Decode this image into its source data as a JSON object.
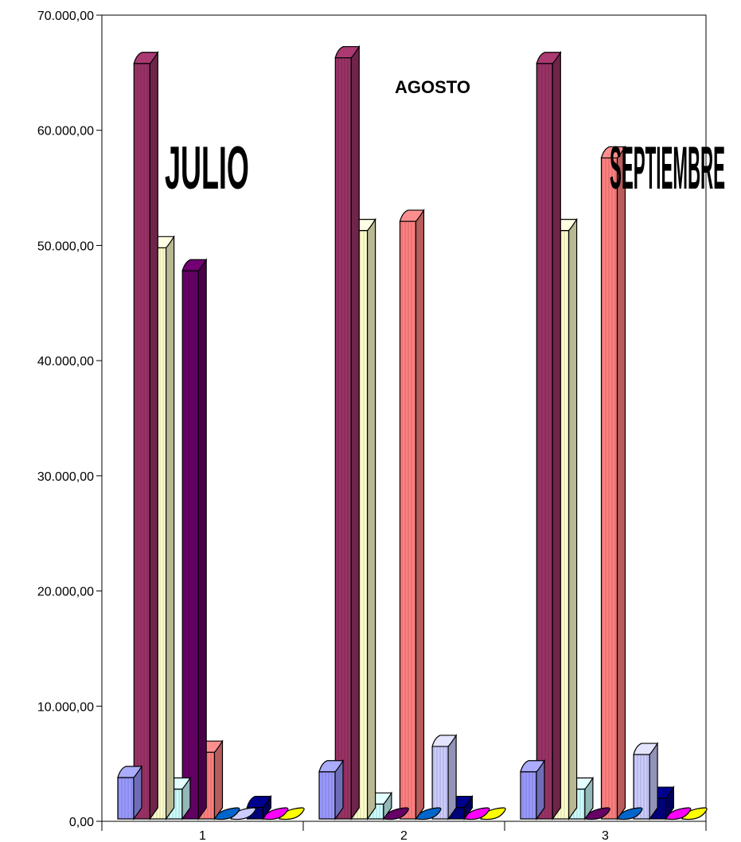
{
  "chart_data": {
    "type": "bar",
    "style": "3d-cylinder",
    "categories": [
      "1",
      "2",
      "3"
    ],
    "ylim": [
      0,
      70000
    ],
    "y_ticks": [
      "0,00",
      "10.000,00",
      "20.000,00",
      "30.000,00",
      "40.000,00",
      "50.000,00",
      "60.000,00",
      "70.000,00"
    ],
    "y_tick_values": [
      0,
      10000,
      20000,
      30000,
      40000,
      50000,
      60000,
      70000
    ],
    "grid": false,
    "legend": "none",
    "annotations": [
      "JULIO",
      "AGOSTO",
      "SEPTIEMBRE"
    ],
    "series": [
      {
        "color": "#9999ff",
        "values": [
          3800,
          4300,
          4300
        ]
      },
      {
        "color": "#993366",
        "values": [
          65800,
          66300,
          65800
        ]
      },
      {
        "color": "#ffffcc",
        "values": [
          49800,
          51300,
          51300
        ]
      },
      {
        "color": "#ccffff",
        "values": [
          2800,
          1500,
          2800
        ]
      },
      {
        "color": "#660066",
        "values": [
          47800,
          0,
          0
        ]
      },
      {
        "color": "#ff8080",
        "values": [
          6000,
          52100,
          57600
        ]
      },
      {
        "color": "#0066cc",
        "values": [
          500,
          0,
          0
        ]
      },
      {
        "color": "#ccccff",
        "values": [
          400,
          6500,
          5800
        ]
      },
      {
        "color": "#000080",
        "values": [
          1200,
          1200,
          2000
        ]
      },
      {
        "color": "#ff00ff",
        "values": [
          0,
          0,
          0
        ]
      },
      {
        "color": "#ffff00",
        "values": [
          0,
          0,
          0
        ]
      }
    ]
  }
}
